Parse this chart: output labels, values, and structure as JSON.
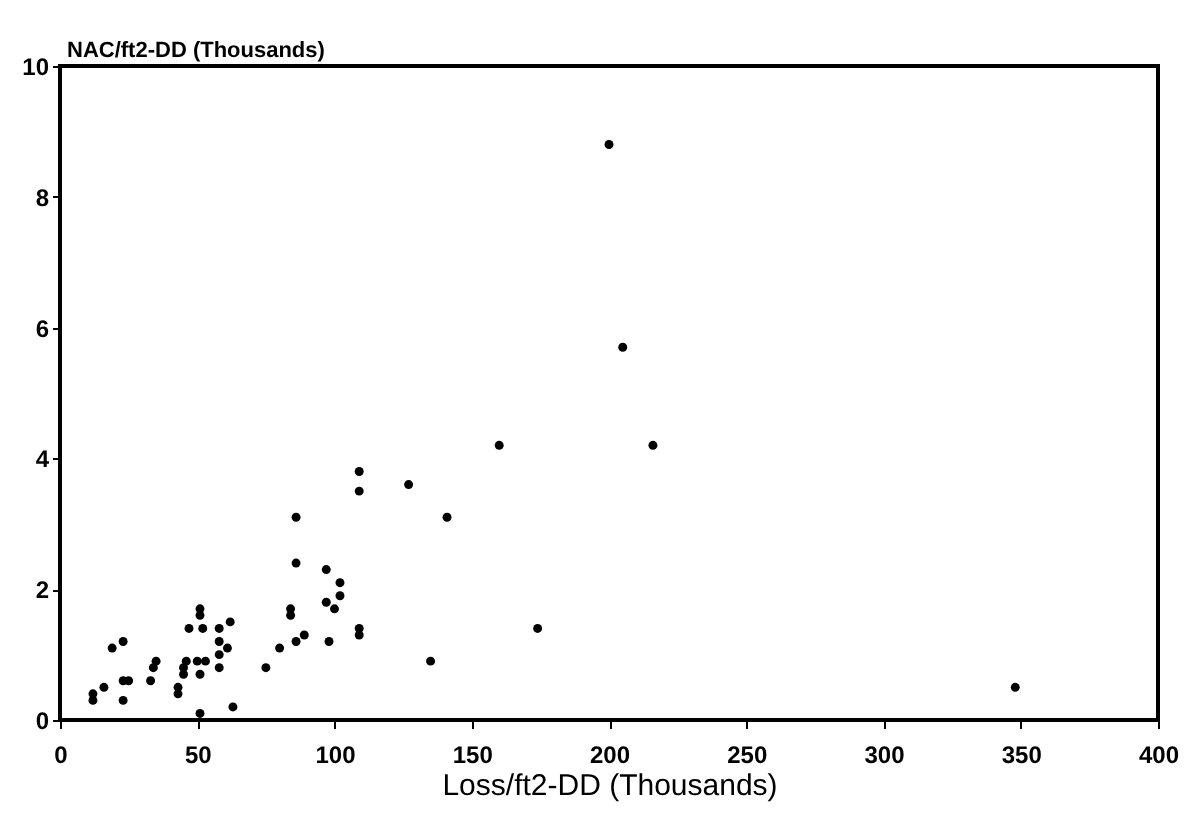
{
  "chart_data": {
    "type": "scatter",
    "xlabel": "Loss/ft2-DD (Thousands)",
    "ylabel": "NAC/ft2-DD (Thousands)",
    "xlim": [
      0,
      400
    ],
    "xticks": [
      0,
      50,
      100,
      150,
      200,
      250,
      300,
      350,
      400
    ],
    "ylim": [
      0,
      10
    ],
    "yticks": [
      0,
      2,
      4,
      6,
      8,
      10
    ],
    "grid": false,
    "marker": "circle",
    "series": [
      {
        "color": "#000000",
        "x": [
          200,
          205,
          160,
          216,
          109,
          109,
          127,
          86,
          141,
          86,
          97,
          102,
          102,
          84,
          84,
          97,
          100,
          109,
          109,
          174,
          86,
          89,
          98,
          135,
          348,
          80,
          51,
          51,
          19,
          23,
          47,
          52,
          58,
          62,
          58,
          58,
          58,
          61,
          35,
          34,
          46,
          45,
          50,
          53,
          51,
          45,
          23,
          25,
          33,
          16,
          12,
          12,
          23,
          43,
          43,
          51,
          63,
          75
        ],
        "values": [
          8.8,
          5.7,
          4.2,
          4.2,
          3.8,
          3.5,
          3.6,
          3.1,
          3.1,
          2.4,
          2.3,
          2.1,
          1.9,
          1.7,
          1.6,
          1.8,
          1.7,
          1.4,
          1.3,
          1.4,
          1.2,
          1.3,
          1.2,
          0.9,
          0.5,
          1.1,
          1.7,
          1.6,
          1.1,
          1.2,
          1.4,
          1.4,
          1.4,
          1.5,
          1.2,
          1.0,
          0.8,
          1.1,
          0.9,
          0.8,
          0.9,
          0.8,
          0.9,
          0.9,
          0.7,
          0.7,
          0.6,
          0.6,
          0.6,
          0.5,
          0.4,
          0.3,
          0.3,
          0.4,
          0.5,
          0.1,
          0.2,
          0.8
        ]
      }
    ]
  }
}
